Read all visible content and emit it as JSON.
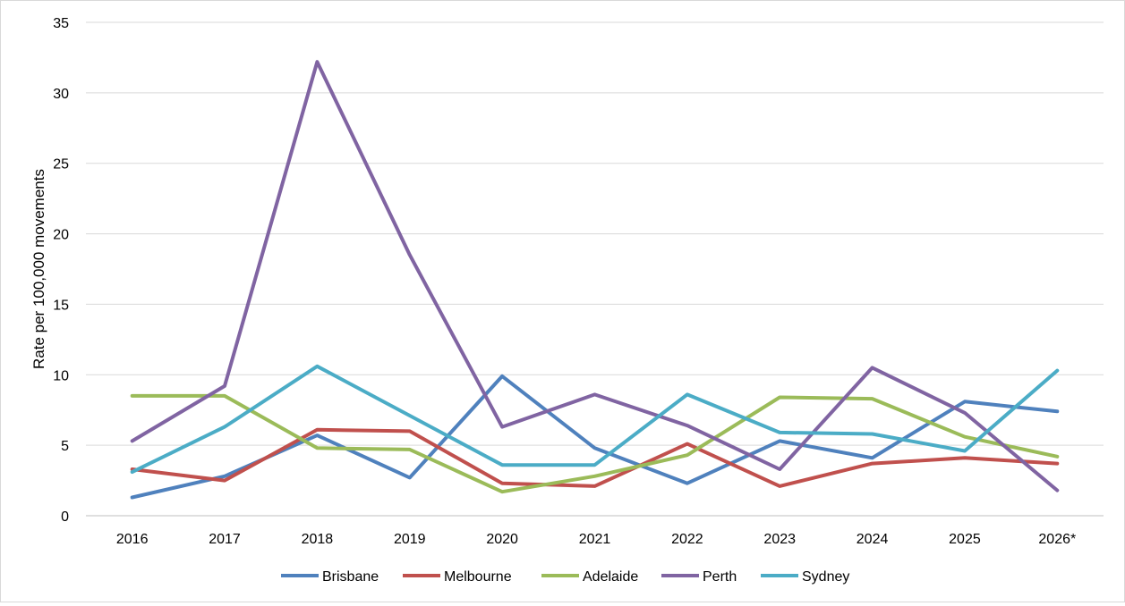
{
  "chart_data": {
    "type": "line",
    "title": "",
    "xlabel": "",
    "ylabel": "Rate per 100,000 movements",
    "ylim": [
      0,
      35
    ],
    "yticks": [
      0,
      5,
      10,
      15,
      20,
      25,
      30,
      35
    ],
    "grid": true,
    "legend_position": "bottom",
    "x": [
      "2016",
      "2017",
      "2018",
      "2019",
      "2020",
      "2021",
      "2022",
      "2023",
      "2024",
      "2025",
      "2026*"
    ],
    "series": [
      {
        "name": "Brisbane",
        "color": "#4f81bd",
        "values": [
          1.3,
          2.8,
          5.7,
          2.7,
          9.9,
          4.8,
          2.3,
          5.3,
          4.1,
          8.1,
          7.4
        ]
      },
      {
        "name": "Melbourne",
        "color": "#c0504d",
        "values": [
          3.3,
          2.5,
          6.1,
          6.0,
          2.3,
          2.1,
          5.1,
          2.1,
          3.7,
          4.1,
          3.7
        ]
      },
      {
        "name": "Adelaide",
        "color": "#9bbb59",
        "values": [
          8.5,
          8.5,
          4.8,
          4.7,
          1.7,
          2.8,
          4.3,
          8.4,
          8.3,
          5.6,
          4.2
        ]
      },
      {
        "name": "Perth",
        "color": "#8064a2",
        "values": [
          5.3,
          9.2,
          32.2,
          18.5,
          6.3,
          8.6,
          6.4,
          3.3,
          10.5,
          7.3,
          1.8
        ]
      },
      {
        "name": "Sydney",
        "color": "#4bacc6",
        "values": [
          3.1,
          6.3,
          10.6,
          7.1,
          3.6,
          3.6,
          8.6,
          5.9,
          5.8,
          4.6,
          10.3
        ]
      }
    ]
  }
}
